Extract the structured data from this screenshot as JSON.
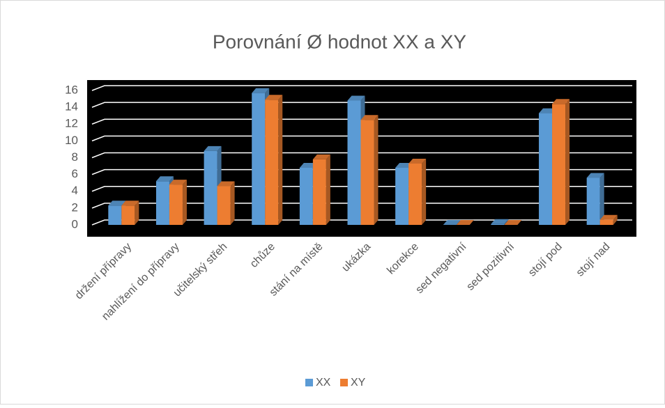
{
  "chart_data": {
    "type": "bar3d",
    "title": "Porovnání Ø hodnot XX a XY",
    "categories": [
      "držení přípravy",
      "nahlížení do přípravy",
      "učitelský střeh",
      "chůze",
      "stání na místě",
      "ukázka",
      "korekce",
      "sed negativní",
      "sed pozitivní",
      "stojí pod",
      "stojí nad"
    ],
    "series": [
      {
        "name": "XX",
        "color": "#5b9bd5",
        "values": [
          2.3,
          5.2,
          8.8,
          15.7,
          6.8,
          14.8,
          6.8,
          0,
          0.1,
          13.3,
          5.6
        ]
      },
      {
        "name": "XY",
        "color": "#ed7d31",
        "values": [
          2.3,
          4.8,
          4.6,
          14.9,
          7.8,
          12.5,
          7.3,
          0,
          0,
          14.4,
          0.6
        ]
      }
    ],
    "ylim": [
      0,
      16
    ],
    "yticks": [
      0,
      2,
      4,
      6,
      8,
      10,
      12,
      14,
      16
    ],
    "grid": true,
    "legend": "bottom"
  }
}
